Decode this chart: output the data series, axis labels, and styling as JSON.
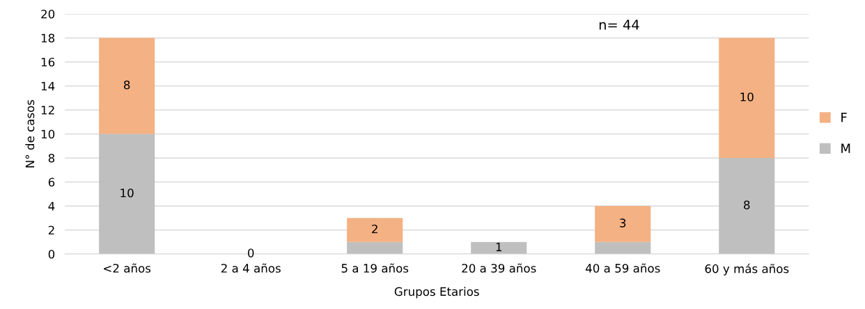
{
  "chart_data": {
    "type": "bar",
    "stacked": true,
    "xlabel": "Grupos Etarios",
    "ylabel": "N° de casos",
    "categories": [
      "<2 años",
      "2 a 4 años",
      "5 a 19 años",
      "20 a 39 años",
      "40 a 59 años",
      "60 y más años"
    ],
    "series": [
      {
        "name": "M",
        "color": "#bfbfbf",
        "values": [
          10,
          0,
          1,
          1,
          1,
          8
        ],
        "value_labels": [
          "10",
          "0",
          null,
          "1",
          null,
          "8"
        ]
      },
      {
        "name": "F",
        "color": "#f4b183",
        "values": [
          8,
          0,
          2,
          0,
          3,
          10
        ],
        "value_labels": [
          "8",
          null,
          "2",
          null,
          "3",
          "10"
        ]
      }
    ],
    "ylim": [
      0,
      20
    ],
    "yticks": [
      0,
      2,
      4,
      6,
      8,
      10,
      12,
      14,
      16,
      18,
      20
    ],
    "grid": "y",
    "legend": "right",
    "annotations": [
      "n= 44"
    ]
  }
}
